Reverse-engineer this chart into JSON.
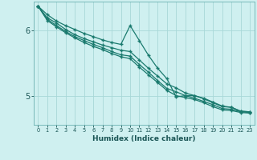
{
  "title": "",
  "xlabel": "Humidex (Indice chaleur)",
  "ylabel": "",
  "bg_color": "#cff0f0",
  "line_color": "#1a7a6e",
  "grid_color": "#a8d8d8",
  "xlim": [
    -0.5,
    23.5
  ],
  "ylim": [
    4.55,
    6.45
  ],
  "yticks": [
    5,
    6
  ],
  "xticks": [
    0,
    1,
    2,
    3,
    4,
    5,
    6,
    7,
    8,
    9,
    10,
    11,
    12,
    13,
    14,
    15,
    16,
    17,
    18,
    19,
    20,
    21,
    22,
    23
  ],
  "series": [
    [
      6.38,
      6.25,
      6.15,
      6.08,
      6.02,
      5.96,
      5.91,
      5.86,
      5.82,
      5.79,
      6.08,
      5.85,
      5.62,
      5.42,
      5.26,
      4.98,
      5.0,
      5.0,
      4.96,
      4.9,
      4.84,
      4.82,
      4.76,
      4.75
    ],
    [
      6.38,
      6.2,
      6.12,
      6.02,
      5.94,
      5.88,
      5.83,
      5.78,
      5.74,
      5.7,
      5.68,
      5.55,
      5.42,
      5.3,
      5.18,
      5.12,
      5.04,
      5.0,
      4.95,
      4.89,
      4.83,
      4.82,
      4.76,
      4.75
    ],
    [
      6.38,
      6.18,
      6.08,
      5.99,
      5.91,
      5.85,
      5.79,
      5.74,
      5.68,
      5.63,
      5.61,
      5.48,
      5.36,
      5.23,
      5.11,
      5.06,
      5.0,
      4.96,
      4.91,
      4.86,
      4.8,
      4.79,
      4.75,
      4.74
    ],
    [
      6.38,
      6.16,
      6.06,
      5.97,
      5.89,
      5.82,
      5.76,
      5.71,
      5.65,
      5.6,
      5.57,
      5.44,
      5.32,
      5.2,
      5.08,
      5.0,
      4.97,
      4.94,
      4.89,
      4.83,
      4.78,
      4.77,
      4.74,
      4.73
    ]
  ]
}
